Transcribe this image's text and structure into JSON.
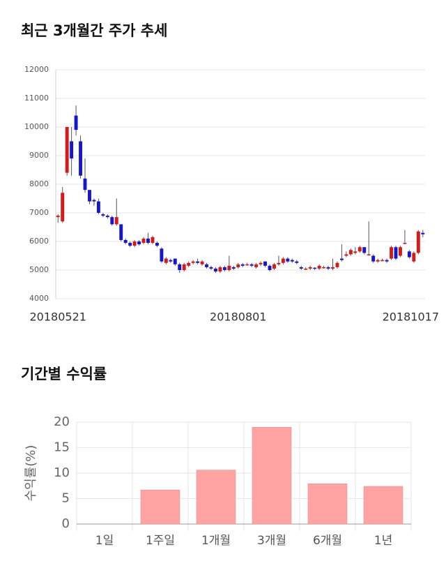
{
  "chart_data": [
    {
      "type": "candlestick",
      "title": "최근 3개월간 주가 추세",
      "categories": [
        "20180521",
        null,
        null,
        null,
        null,
        null,
        null,
        null,
        null,
        null,
        null,
        null,
        null,
        null,
        null,
        null,
        null,
        null,
        null,
        null,
        null,
        null,
        null,
        null,
        null,
        null,
        null,
        null,
        null,
        null,
        null,
        null,
        null,
        null,
        null,
        null,
        null,
        null,
        null,
        null,
        "20180801",
        null,
        null,
        null,
        null,
        null,
        null,
        null,
        null,
        null,
        null,
        null,
        null,
        null,
        null,
        null,
        null,
        null,
        null,
        null,
        null,
        null,
        null,
        null,
        null,
        null,
        null,
        null,
        null,
        null,
        null,
        null,
        null,
        null,
        null,
        null,
        null,
        null,
        null,
        null,
        null,
        "20181017"
      ],
      "open": [
        6850,
        6700,
        8400,
        9500,
        10400,
        9500,
        8200,
        7800,
        7450,
        7400,
        6950,
        6900,
        6850,
        6600,
        6600,
        6050,
        5950,
        5850,
        6000,
        5950,
        6100,
        5950,
        5950,
        5750,
        5250,
        5350,
        5400,
        5200,
        5000,
        5150,
        5250,
        5300,
        5200,
        5200,
        5100,
        5050,
        4950,
        5100,
        5000,
        5100,
        5100,
        5200,
        5200,
        5200,
        5100,
        5200,
        5300,
        5150,
        5050,
        5200,
        5250,
        5400,
        5350,
        5300,
        5100,
        5050,
        5050,
        5080,
        5050,
        5100,
        5100,
        5050,
        5100,
        5400,
        5500,
        5550,
        5600,
        5650,
        5800,
        5550,
        5500,
        5300,
        5350,
        5350,
        5400,
        5800,
        5500,
        5950,
        5650,
        5300,
        5600,
        6300
      ],
      "high": [
        6950,
        7900,
        10000,
        10000,
        10750,
        9700,
        8900,
        7800,
        7500,
        7500,
        7000,
        6950,
        6900,
        7500,
        6600,
        6100,
        6000,
        6050,
        6050,
        6150,
        6300,
        6200,
        6000,
        5800,
        5450,
        5400,
        5400,
        5250,
        5250,
        5300,
        5350,
        5400,
        5350,
        5250,
        5150,
        5100,
        5150,
        5150,
        5500,
        5150,
        5250,
        5250,
        5250,
        5250,
        5250,
        5300,
        5300,
        5200,
        5250,
        5500,
        5450,
        5450,
        5400,
        5350,
        5150,
        5100,
        5150,
        5100,
        5200,
        5150,
        5150,
        5400,
        5300,
        5900,
        5650,
        5750,
        5800,
        5850,
        5800,
        6700,
        5550,
        5400,
        5400,
        5400,
        5850,
        5850,
        5850,
        6400,
        5700,
        5650,
        6400,
        6400
      ],
      "low": [
        6650,
        6650,
        8300,
        8300,
        9700,
        8200,
        7700,
        7300,
        7250,
        6950,
        6850,
        6800,
        6550,
        6550,
        6000,
        5900,
        5800,
        5800,
        5850,
        5900,
        5900,
        5900,
        5800,
        5250,
        5200,
        5250,
        5150,
        4900,
        4950,
        5100,
        5200,
        5200,
        5150,
        5050,
        5000,
        4900,
        4900,
        4950,
        4950,
        5000,
        5050,
        5100,
        5150,
        5100,
        5050,
        5150,
        5100,
        4950,
        5000,
        5150,
        5200,
        5250,
        5250,
        5200,
        5000,
        5000,
        5000,
        5000,
        5000,
        5050,
        5000,
        5000,
        5050,
        5300,
        5450,
        5500,
        5550,
        5600,
        5550,
        5500,
        5250,
        5250,
        5300,
        5250,
        5350,
        5350,
        5450,
        5900,
        5400,
        5250,
        5550,
        6150
      ],
      "close": [
        6900,
        7700,
        10000,
        8900,
        9900,
        8300,
        7800,
        7400,
        7400,
        7000,
        6900,
        6850,
        6600,
        6850,
        6050,
        5950,
        5850,
        6000,
        5900,
        6100,
        5950,
        6150,
        5850,
        5300,
        5400,
        5300,
        5200,
        5000,
        5200,
        5250,
        5300,
        5250,
        5300,
        5100,
        5050,
        4950,
        5100,
        5000,
        5150,
        5050,
        5200,
        5150,
        5200,
        5150,
        5200,
        5250,
        5150,
        5000,
        5200,
        5250,
        5400,
        5300,
        5300,
        5250,
        5050,
        5050,
        5100,
        5050,
        5150,
        5100,
        5050,
        5100,
        5250,
        5350,
        5550,
        5700,
        5650,
        5800,
        5600,
        5550,
        5300,
        5350,
        5350,
        5300,
        5800,
        5400,
        5800,
        5950,
        5450,
        5600,
        6350,
        6250
      ],
      "up_color": "#d41a1a",
      "down_color": "#1717c9",
      "ylim": [
        4000,
        12000
      ],
      "yticks": [
        4000,
        5000,
        6000,
        7000,
        8000,
        9000,
        10000,
        11000,
        12000
      ],
      "grid": true
    },
    {
      "type": "bar",
      "title": "기간별 수익률",
      "ylabel": "수익률(%)",
      "categories": [
        "1일",
        "1주일",
        "1개월",
        "3개월",
        "6개월",
        "1년"
      ],
      "values": [
        0,
        6.7,
        10.6,
        19,
        7.9,
        7.4
      ],
      "color": "#ffa3a3",
      "ylim": [
        0,
        20
      ],
      "yticks": [
        0,
        5,
        10,
        15,
        20
      ],
      "grid": true
    }
  ]
}
